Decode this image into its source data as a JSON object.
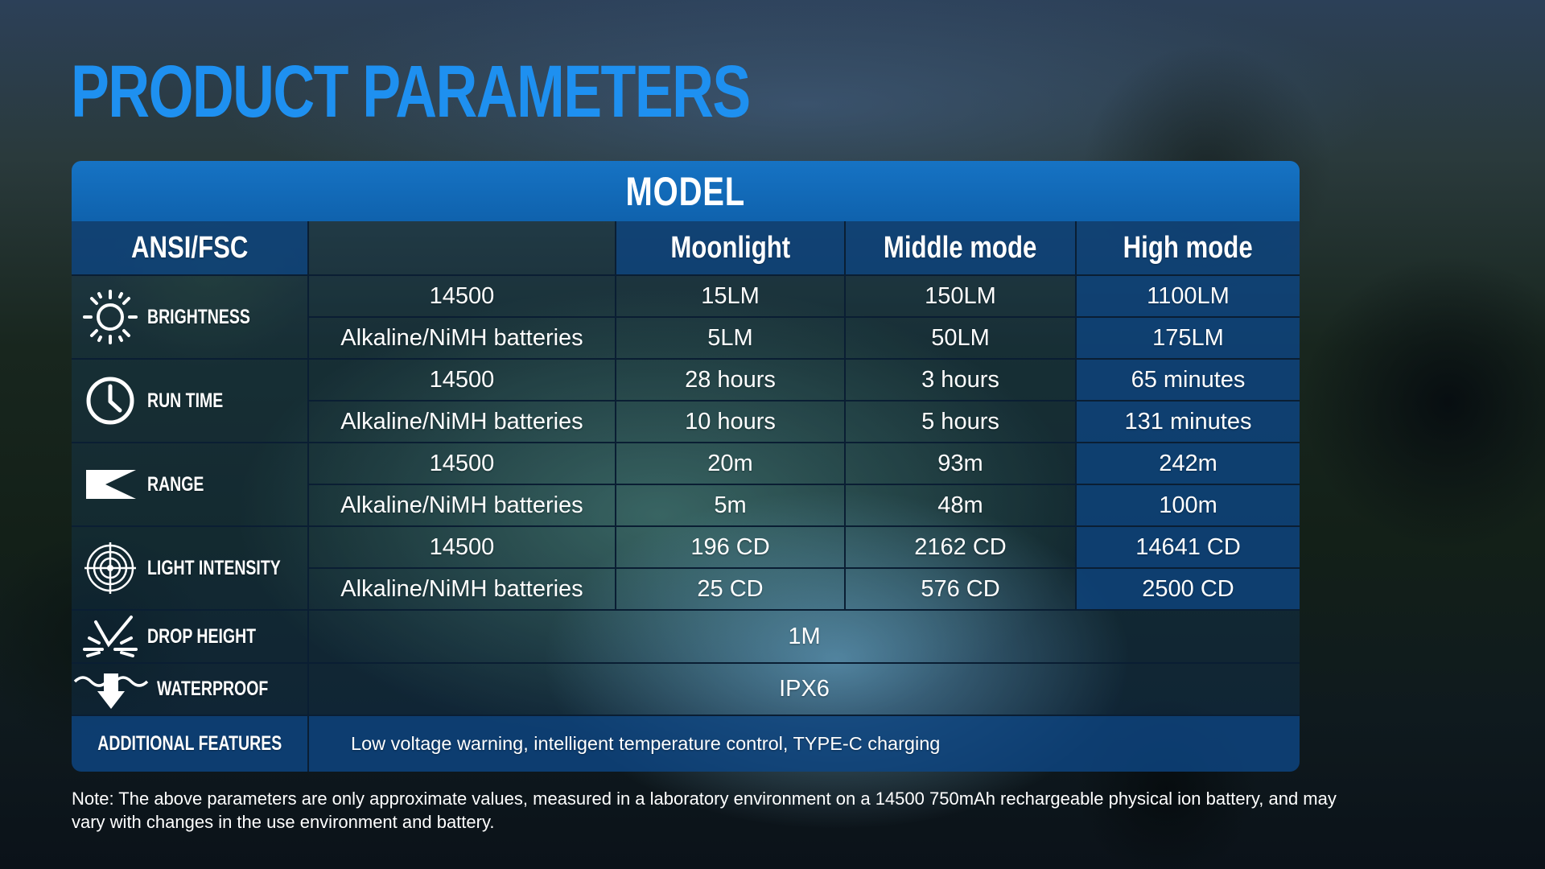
{
  "title": "PRODUCT PARAMETERS",
  "table": {
    "model_label": "MODEL",
    "headers": [
      "ANSI/FSC",
      "",
      "Moonlight",
      "Middle mode",
      "High mode"
    ],
    "groups": [
      {
        "label": "BRIGHTNESS",
        "icon": "sun-icon",
        "rows": [
          [
            "14500",
            "15LM",
            "150LM",
            "1100LM"
          ],
          [
            "Alkaline/NiMH batteries",
            "5LM",
            "50LM",
            "175LM"
          ]
        ]
      },
      {
        "label": "RUN TIME",
        "icon": "clock-icon",
        "rows": [
          [
            "14500",
            "28 hours",
            "3 hours",
            "65 minutes"
          ],
          [
            "Alkaline/NiMH batteries",
            "10 hours",
            "5 hours",
            "131 minutes"
          ]
        ]
      },
      {
        "label": "RANGE",
        "icon": "beam-icon",
        "rows": [
          [
            "14500",
            "20m",
            "93m",
            "242m"
          ],
          [
            "Alkaline/NiMH batteries",
            "5m",
            "48m",
            "100m"
          ]
        ]
      },
      {
        "label": "LIGHT INTENSITY",
        "icon": "target-icon",
        "rows": [
          [
            "14500",
            "196 CD",
            "2162 CD",
            "14641 CD"
          ],
          [
            "Alkaline/NiMH batteries",
            "25 CD",
            "576 CD",
            "2500 CD"
          ]
        ]
      }
    ],
    "drop_height": {
      "label": "DROP HEIGHT",
      "icon": "impact-icon",
      "value": "1M"
    },
    "waterproof": {
      "label": "WATERPROOF",
      "icon": "water-drop-icon",
      "value": "IPX6"
    },
    "additional": {
      "label": "ADDITIONAL FEATURES",
      "value": "Low voltage warning, intelligent temperature control, TYPE-C charging"
    }
  },
  "note": "Note: The above parameters are only approximate values, measured in a laboratory environment on a 14500 750mAh rechargeable physical ion battery, and may vary with changes in the use environment and battery.",
  "colors": {
    "title": "#1e90f0",
    "header_band": "#1673c4",
    "dark_cell": "#0e4682"
  }
}
